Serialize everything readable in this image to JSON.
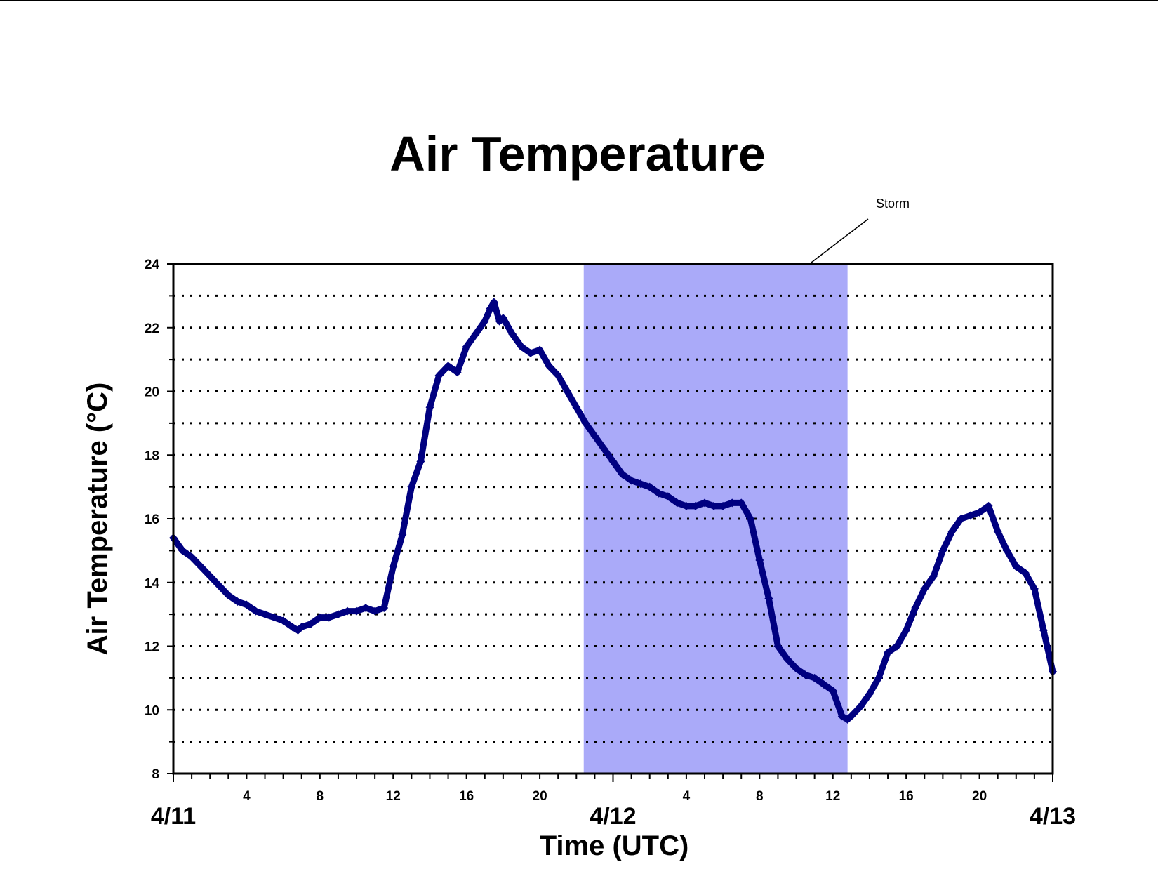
{
  "chart_data": {
    "type": "scatter",
    "title": "Air Temperature",
    "xlabel": "Time (UTC)",
    "ylabel": "Air Temperature (°C)",
    "x_unit": "hours since 4/11 00:00 UTC",
    "xlim": [
      0,
      48
    ],
    "ylim": [
      8,
      24
    ],
    "y_major_ticks": [
      8,
      10,
      12,
      14,
      16,
      18,
      20,
      22,
      24
    ],
    "y_gridlines": [
      9,
      10,
      11,
      12,
      13,
      14,
      15,
      16,
      17,
      18,
      19,
      20,
      21,
      22,
      23
    ],
    "grid": "dotted horizontal",
    "hour_tick_labels": [
      {
        "hour": 4,
        "label": "4"
      },
      {
        "hour": 8,
        "label": "8"
      },
      {
        "hour": 12,
        "label": "12"
      },
      {
        "hour": 16,
        "label": "16"
      },
      {
        "hour": 20,
        "label": "20"
      },
      {
        "hour": 28,
        "label": "4"
      },
      {
        "hour": 32,
        "label": "8"
      },
      {
        "hour": 36,
        "label": "12"
      },
      {
        "hour": 40,
        "label": "16"
      },
      {
        "hour": 44,
        "label": "20"
      }
    ],
    "date_labels": [
      {
        "hour": 0,
        "label": "4/11"
      },
      {
        "hour": 24,
        "label": "4/12"
      },
      {
        "hour": 48,
        "label": "4/13"
      }
    ],
    "shaded_region": {
      "label": "Storm",
      "x_start": 22.4,
      "x_end": 36.8,
      "color": "#aaaaf9"
    },
    "series": [
      {
        "color": "#000080",
        "marker": "diamond",
        "x": [
          0,
          0.5,
          1,
          1.5,
          2,
          2.5,
          3,
          3.5,
          4,
          4.5,
          5,
          5.5,
          6,
          6.5,
          6.8,
          7,
          7.5,
          8,
          8.5,
          9,
          9.5,
          10,
          10.5,
          11,
          11.5,
          12,
          12.5,
          13,
          13.5,
          14,
          14.5,
          15,
          15.5,
          16,
          16.5,
          17,
          17.3,
          17.5,
          17.8,
          18,
          18.5,
          19,
          19.5,
          20,
          20.5,
          21,
          21.5,
          22,
          22.5,
          23,
          23.5,
          24,
          24.5,
          25,
          25.5,
          26,
          26.5,
          27,
          27.5,
          28,
          28.5,
          29,
          29.5,
          30,
          30.5,
          31,
          31.5,
          32,
          32.5,
          33,
          33.5,
          34,
          34.5,
          35,
          35.5,
          36,
          36.5,
          36.8,
          37,
          37.5,
          38,
          38.5,
          39,
          39.5,
          40,
          40.5,
          41,
          41.5,
          42,
          42.5,
          43,
          43.5,
          44,
          44.5,
          45,
          45.5,
          46,
          46.5,
          47,
          47.5,
          48
        ],
        "y": [
          15.4,
          15.0,
          14.8,
          14.5,
          14.2,
          13.9,
          13.6,
          13.4,
          13.3,
          13.1,
          13.0,
          12.9,
          12.8,
          12.6,
          12.5,
          12.6,
          12.7,
          12.9,
          12.9,
          13.0,
          13.1,
          13.1,
          13.2,
          13.1,
          13.2,
          14.5,
          15.5,
          17.0,
          17.8,
          19.5,
          20.5,
          20.8,
          20.6,
          21.4,
          21.8,
          22.2,
          22.6,
          22.8,
          22.2,
          22.3,
          21.8,
          21.4,
          21.2,
          21.3,
          20.8,
          20.5,
          20.0,
          19.5,
          19.0,
          18.6,
          18.2,
          17.8,
          17.4,
          17.2,
          17.1,
          17.0,
          16.8,
          16.7,
          16.5,
          16.4,
          16.4,
          16.5,
          16.4,
          16.4,
          16.5,
          16.5,
          16.0,
          14.7,
          13.5,
          12.0,
          11.6,
          11.3,
          11.1,
          11.0,
          10.8,
          10.6,
          9.8,
          9.7,
          9.8,
          10.1,
          10.5,
          11.0,
          11.8,
          12.0,
          12.5,
          13.2,
          13.8,
          14.2,
          15.0,
          15.6,
          16.0,
          16.1,
          16.2,
          16.4,
          15.6,
          15.0,
          14.5,
          14.3,
          13.8,
          12.5,
          11.2
        ]
      }
    ]
  }
}
